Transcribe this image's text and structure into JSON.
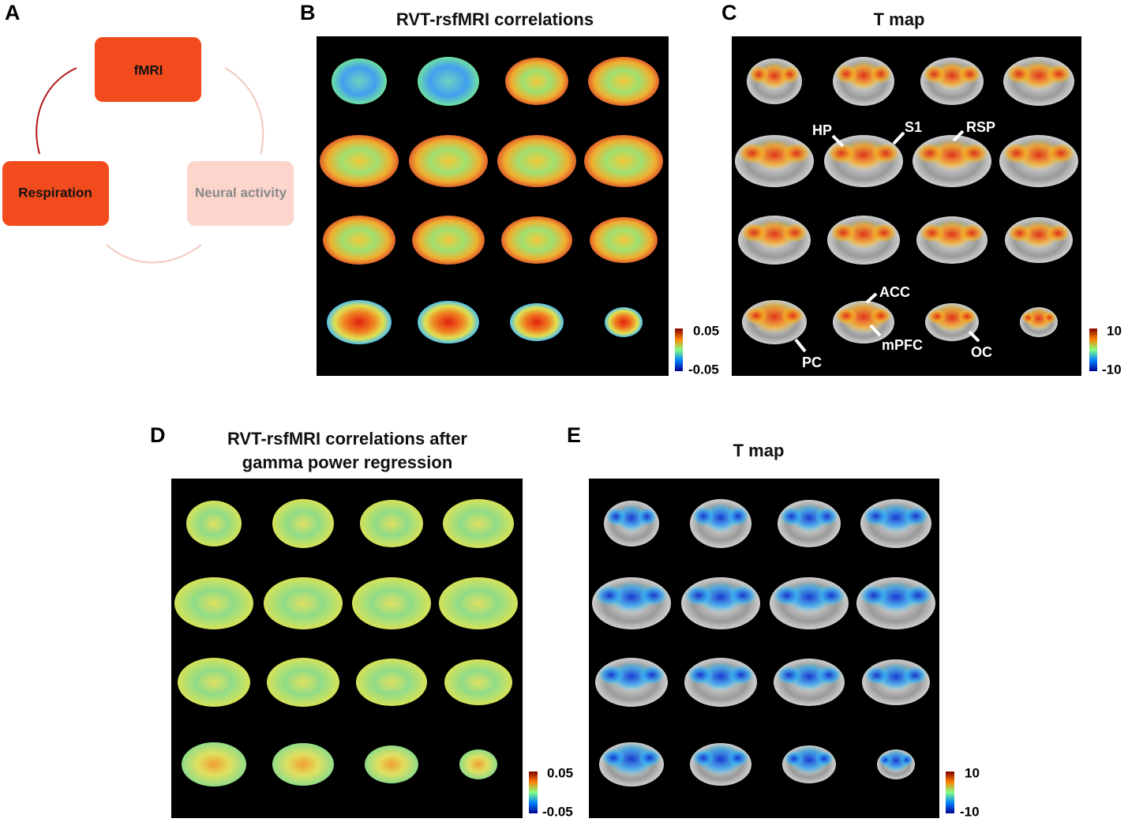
{
  "panels": {
    "A": {
      "letter": "A",
      "nodes": [
        {
          "label": "fMRI"
        },
        {
          "label": "Respiration"
        },
        {
          "label": "Neural activity"
        }
      ]
    },
    "B": {
      "letter": "B",
      "title": "RVT-rsfMRI correlations",
      "colorbar": {
        "max": "0.05",
        "min": "-0.05"
      }
    },
    "C": {
      "letter": "C",
      "title": "T map",
      "colorbar": {
        "max": "10",
        "min": "-10"
      },
      "regions": [
        "HP",
        "S1",
        "RSP",
        "ACC",
        "mPFC",
        "PC",
        "OC"
      ]
    },
    "D": {
      "letter": "D",
      "title_lines": [
        "RVT-rsfMRI correlations after",
        "gamma power regression"
      ],
      "colorbar": {
        "max": "0.05",
        "min": "-0.05"
      }
    },
    "E": {
      "letter": "E",
      "title": "T map",
      "colorbar": {
        "max": "10",
        "min": "-10"
      }
    }
  }
}
